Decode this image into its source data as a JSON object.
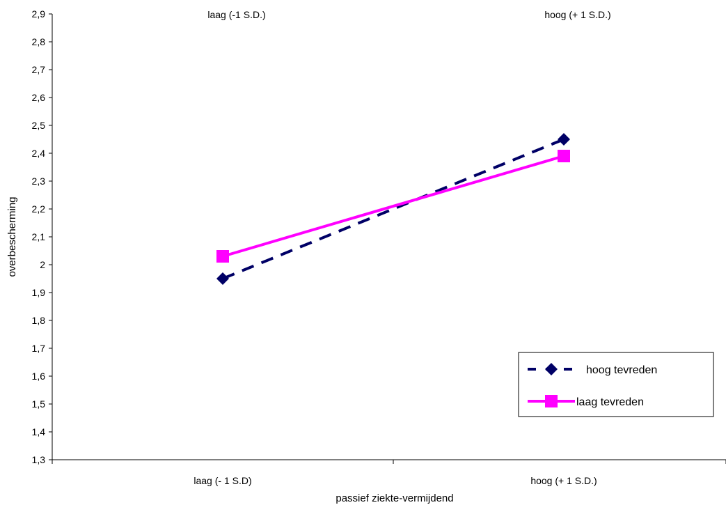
{
  "chart_data": {
    "type": "line",
    "title": "",
    "xlabel": "passief ziekte-vermijdend",
    "ylabel": "overbescherming",
    "categories": [
      "laag (- 1 S.D)",
      "hoog (+ 1 S.D.)"
    ],
    "top_categories": [
      "laag (-1 S.D.)",
      "hoog (+ 1 S.D.)"
    ],
    "ylim": [
      1.3,
      2.9
    ],
    "yticks": [
      "1,3",
      "1,4",
      "1,5",
      "1,6",
      "1,7",
      "1,8",
      "1,9",
      "2",
      "2,1",
      "2,2",
      "2,3",
      "2,4",
      "2,5",
      "2,6",
      "2,7",
      "2,8",
      "2,9"
    ],
    "grid": false,
    "legend_position": "lower-right",
    "series": [
      {
        "name": "hoog tevreden",
        "values": [
          1.95,
          2.45
        ],
        "color": "#000066",
        "marker": "diamond",
        "line_style": "dashed"
      },
      {
        "name": "laag tevreden",
        "values": [
          2.03,
          2.39
        ],
        "color": "#ff00ff",
        "marker": "square",
        "line_style": "solid"
      }
    ]
  }
}
